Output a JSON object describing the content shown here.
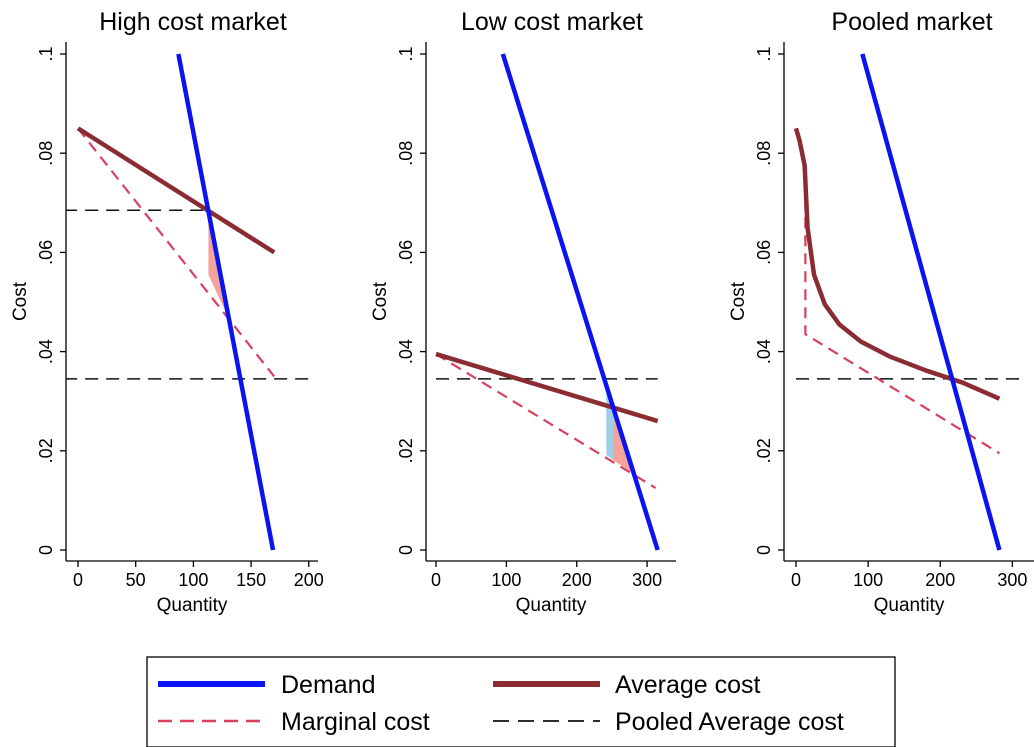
{
  "chart_data": [
    {
      "type": "line",
      "title": "High cost market",
      "xlabel": "Quantity",
      "ylabel": "Cost",
      "xlim": [
        0,
        200
      ],
      "ylim": [
        0,
        0.1
      ],
      "xticks": [
        0,
        50,
        100,
        150,
        200
      ],
      "xtick_labels": [
        "0",
        "50",
        "100",
        "150",
        "200"
      ],
      "yticks": [
        0,
        0.02,
        0.04,
        0.06,
        0.08,
        0.1
      ],
      "ytick_labels": [
        "0",
        ".02",
        ".04",
        ".06",
        ".08",
        ".1"
      ],
      "series": [
        {
          "name": "Demand",
          "points": [
            [
              87,
              0.1
            ],
            [
              169,
              0.0
            ]
          ]
        },
        {
          "name": "Average cost",
          "points": [
            [
              0,
              0.085
            ],
            [
              170,
              0.06
            ]
          ]
        },
        {
          "name": "Marginal cost",
          "points": [
            [
              0,
              0.085
            ],
            [
              170,
              0.035
            ]
          ]
        },
        {
          "name": "Pooled Average cost",
          "points": [
            [
              -12,
              0.0685
            ],
            [
              113,
              0.0685
            ]
          ]
        },
        {
          "name": "Pooled Average cost",
          "points": [
            [
              -12,
              0.0345
            ],
            [
              202,
              0.0345
            ]
          ]
        }
      ],
      "shaded": [
        {
          "color": "#f4a39a",
          "points": [
            [
              113,
              0.0685
            ],
            [
              113,
              0.0555
            ],
            [
              131,
              0.0465
            ],
            [
              128,
              0.0525
            ]
          ]
        }
      ]
    },
    {
      "type": "line",
      "title": "Low cost market",
      "xlabel": "Quantity",
      "ylabel": "Cost",
      "xlim": [
        0,
        300
      ],
      "ylim": [
        0,
        0.1
      ],
      "xticks": [
        0,
        100,
        200,
        300
      ],
      "xtick_labels": [
        "0",
        "100",
        "200",
        "300"
      ],
      "yticks": [
        0,
        0.02,
        0.04,
        0.06,
        0.08,
        0.1
      ],
      "ytick_labels": [
        "0",
        ".02",
        ".04",
        ".06",
        ".08",
        ".1"
      ],
      "series": [
        {
          "name": "Demand",
          "points": [
            [
              95,
              0.1
            ],
            [
              315,
              0.0
            ]
          ]
        },
        {
          "name": "Average cost",
          "points": [
            [
              0,
              0.0395
            ],
            [
              315,
              0.026
            ]
          ]
        },
        {
          "name": "Marginal cost",
          "points": [
            [
              0,
              0.0395
            ],
            [
              312,
              0.0125
            ]
          ]
        },
        {
          "name": "Pooled Average cost",
          "points": [
            [
              0,
              0.0345
            ],
            [
              315,
              0.0345
            ]
          ]
        }
      ],
      "shaded": [
        {
          "color": "#9fcfe8",
          "points": [
            [
              242,
              0.0345
            ],
            [
              253,
              0.0295
            ],
            [
              253,
              0.018
            ],
            [
              242,
              0.0192
            ]
          ]
        },
        {
          "color": "#f4a39a",
          "points": [
            [
              253,
              0.0295
            ],
            [
              253,
              0.018
            ],
            [
              280,
              0.0155
            ]
          ]
        }
      ]
    },
    {
      "type": "line",
      "title": "Pooled market",
      "xlabel": "Quantity",
      "ylabel": "Cost",
      "xlim": [
        0,
        300
      ],
      "ylim": [
        0,
        0.1
      ],
      "xticks": [
        0,
        100,
        200,
        300
      ],
      "xtick_labels": [
        "0",
        "100",
        "200",
        "300"
      ],
      "yticks": [
        0,
        0.02,
        0.04,
        0.06,
        0.08,
        0.1
      ],
      "ytick_labels": [
        "0",
        ".02",
        ".04",
        ".06",
        ".08",
        ".1"
      ],
      "series": [
        {
          "name": "Demand",
          "points": [
            [
              92,
              0.1
            ],
            [
              282,
              0.0
            ]
          ]
        },
        {
          "name": "Average cost",
          "points": [
            [
              0,
              0.085
            ],
            [
              5,
              0.0825
            ],
            [
              12,
              0.0775
            ],
            [
              16,
              0.065
            ],
            [
              25,
              0.0555
            ],
            [
              40,
              0.0495
            ],
            [
              60,
              0.0455
            ],
            [
              90,
              0.042
            ],
            [
              130,
              0.039
            ],
            [
              180,
              0.0362
            ],
            [
              230,
              0.0338
            ],
            [
              282,
              0.0305
            ]
          ]
        },
        {
          "name": "Marginal cost",
          "points": [
            [
              0,
              0.085
            ],
            [
              13,
              0.0775
            ],
            [
              13,
              0.0435
            ],
            [
              282,
              0.0195
            ]
          ]
        },
        {
          "name": "Pooled Average cost",
          "points": [
            [
              0,
              0.0345
            ],
            [
              315,
              0.0345
            ]
          ]
        }
      ],
      "shaded": []
    }
  ],
  "legend": {
    "placement": "bottom",
    "items": [
      {
        "label": "Demand",
        "style": "solid-thick",
        "color": "#0a14f0"
      },
      {
        "label": "Average cost",
        "style": "solid-thick",
        "color": "#8b2c32"
      },
      {
        "label": "Marginal cost",
        "style": "dashed",
        "color": "#d8405e"
      },
      {
        "label": "Pooled Average cost",
        "style": "dashed-thin",
        "color": "#111111"
      }
    ]
  },
  "colors": {
    "Demand": "#0a14f0",
    "Average cost": "#8b2c32",
    "Marginal cost": "#d8405e",
    "Pooled Average cost": "#111111"
  }
}
